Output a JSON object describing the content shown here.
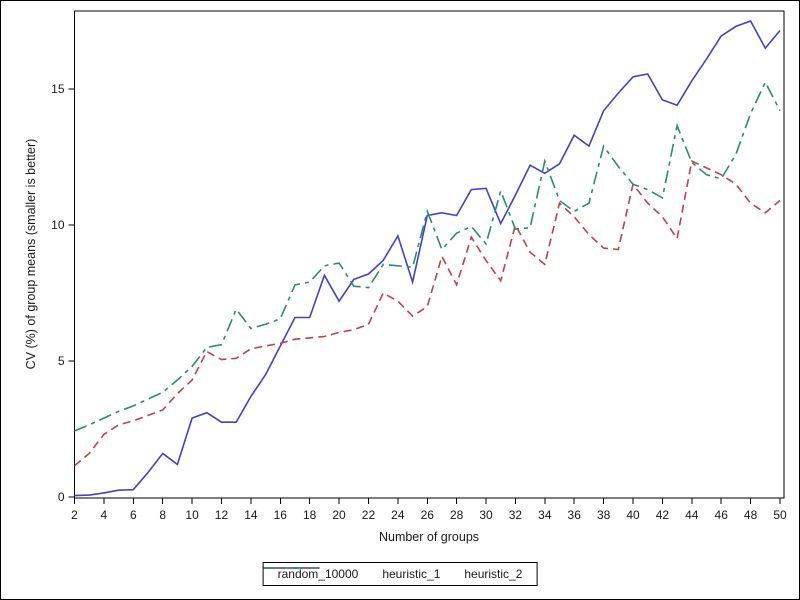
{
  "figure": {
    "background": "#ffffff",
    "frame_color": "#000000",
    "text_color": "#1a1a1a"
  },
  "chart_data": {
    "type": "line",
    "title": "",
    "xlabel": "Number of groups",
    "ylabel": "CV (%) of group means (smaller is better)",
    "xlim": [
      2,
      50
    ],
    "ylim": [
      0,
      17.9
    ],
    "grid": false,
    "legend_position": "bottom-center",
    "x_ticks": [
      2,
      4,
      6,
      8,
      10,
      12,
      14,
      16,
      18,
      20,
      22,
      24,
      26,
      28,
      30,
      32,
      34,
      36,
      38,
      40,
      42,
      44,
      46,
      48,
      50
    ],
    "y_ticks": [
      0,
      5,
      10,
      15
    ],
    "x": [
      2,
      3,
      4,
      5,
      6,
      7,
      8,
      9,
      10,
      11,
      12,
      13,
      14,
      15,
      16,
      17,
      18,
      19,
      20,
      21,
      22,
      23,
      24,
      25,
      26,
      27,
      28,
      29,
      30,
      31,
      32,
      33,
      34,
      35,
      36,
      37,
      38,
      39,
      40,
      41,
      42,
      43,
      44,
      45,
      46,
      47,
      48,
      49,
      50
    ],
    "series": [
      {
        "name": "random_10000",
        "color": "#4141cd",
        "dash": "solid",
        "values": [
          0.05,
          0.07,
          0.15,
          0.25,
          0.27,
          0.9,
          1.6,
          1.2,
          2.9,
          3.1,
          2.75,
          2.75,
          3.7,
          4.5,
          5.55,
          6.6,
          6.6,
          8.15,
          7.2,
          8.0,
          8.2,
          8.7,
          9.6,
          7.9,
          10.35,
          10.45,
          10.35,
          11.3,
          11.35,
          10.05,
          11.1,
          12.2,
          11.9,
          12.25,
          13.3,
          12.9,
          14.2,
          14.85,
          15.45,
          15.55,
          14.6,
          14.4,
          15.3,
          16.1,
          16.95,
          17.3,
          17.5,
          16.5,
          17.15
        ]
      },
      {
        "name": "heuristic_1",
        "color": "#c04050",
        "dash": "dashed",
        "values": [
          1.15,
          1.6,
          2.3,
          2.65,
          2.8,
          3.0,
          3.2,
          3.8,
          4.3,
          5.35,
          5.05,
          5.1,
          5.45,
          5.55,
          5.65,
          5.8,
          5.85,
          5.9,
          6.05,
          6.15,
          6.35,
          7.5,
          7.2,
          6.65,
          7.0,
          8.85,
          7.8,
          9.55,
          8.7,
          7.95,
          10.0,
          9.0,
          8.55,
          10.8,
          10.3,
          9.65,
          9.15,
          9.1,
          11.5,
          10.8,
          10.3,
          9.5,
          12.35,
          12.1,
          11.85,
          11.5,
          10.8,
          10.45,
          10.9
        ]
      },
      {
        "name": "heuristic_2",
        "color": "#2d8a73",
        "dash": "dash-dot",
        "values": [
          2.43,
          2.65,
          2.9,
          3.15,
          3.35,
          3.6,
          3.85,
          4.3,
          4.8,
          5.5,
          5.6,
          6.9,
          6.2,
          6.35,
          6.55,
          7.8,
          7.9,
          8.5,
          8.6,
          7.75,
          7.7,
          8.55,
          8.5,
          8.45,
          10.5,
          9.1,
          9.7,
          9.95,
          9.3,
          11.25,
          9.85,
          9.9,
          12.35,
          10.9,
          10.5,
          10.8,
          12.9,
          12.15,
          11.5,
          11.3,
          11.0,
          13.65,
          12.3,
          11.85,
          11.7,
          12.6,
          14.1,
          15.25,
          14.2
        ]
      }
    ]
  }
}
